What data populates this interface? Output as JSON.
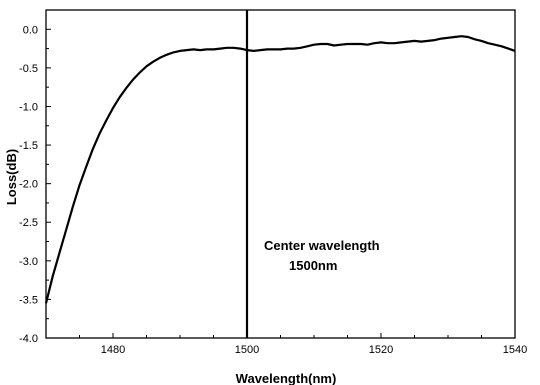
{
  "chart_data": {
    "type": "line",
    "title": "",
    "xlabel": "Wavelength(nm)",
    "ylabel": "Loss(dB)",
    "xlim": [
      1470,
      1540
    ],
    "ylim": [
      -4.0,
      0.25
    ],
    "x_ticks": [
      1480,
      1500,
      1520,
      1540
    ],
    "x_tick_labels": [
      "1480",
      "1500",
      "1520",
      "1540"
    ],
    "y_ticks": [
      0.0,
      -0.5,
      -1.0,
      -1.5,
      -2.0,
      -2.5,
      -3.0,
      -3.5,
      -4.0
    ],
    "y_tick_labels": [
      "0.0",
      "-0.5",
      "-1.0",
      "-1.5",
      "-2.0",
      "-2.5",
      "-3.0",
      "-3.5",
      "-4.0"
    ],
    "grid": false,
    "legend": "none",
    "line_color": "#000000",
    "series": [
      {
        "x": [
          1470,
          1471,
          1472,
          1473,
          1474,
          1475,
          1476,
          1477,
          1478,
          1479,
          1480,
          1481,
          1482,
          1483,
          1484,
          1485,
          1486,
          1487,
          1488,
          1489,
          1490,
          1491,
          1492,
          1493,
          1494,
          1495,
          1496,
          1497,
          1498,
          1499,
          1500,
          1501,
          1502,
          1503,
          1504,
          1505,
          1506,
          1507,
          1508,
          1509,
          1510,
          1511,
          1512,
          1513,
          1514,
          1515,
          1516,
          1517,
          1518,
          1519,
          1520,
          1521,
          1522,
          1523,
          1524,
          1525,
          1526,
          1527,
          1528,
          1529,
          1530,
          1531,
          1532,
          1533,
          1534,
          1535,
          1536,
          1537,
          1538,
          1539,
          1540
        ],
        "values": [
          -3.55,
          -3.2,
          -2.9,
          -2.6,
          -2.3,
          -2.02,
          -1.78,
          -1.55,
          -1.35,
          -1.18,
          -1.02,
          -0.88,
          -0.76,
          -0.65,
          -0.56,
          -0.48,
          -0.42,
          -0.37,
          -0.33,
          -0.3,
          -0.28,
          -0.27,
          -0.26,
          -0.27,
          -0.26,
          -0.26,
          -0.25,
          -0.24,
          -0.24,
          -0.25,
          -0.27,
          -0.28,
          -0.27,
          -0.26,
          -0.26,
          -0.26,
          -0.25,
          -0.25,
          -0.24,
          -0.22,
          -0.2,
          -0.19,
          -0.19,
          -0.21,
          -0.2,
          -0.19,
          -0.19,
          -0.19,
          -0.2,
          -0.18,
          -0.17,
          -0.18,
          -0.18,
          -0.17,
          -0.16,
          -0.15,
          -0.16,
          -0.15,
          -0.14,
          -0.12,
          -0.11,
          -0.1,
          -0.09,
          -0.1,
          -0.13,
          -0.15,
          -0.18,
          -0.2,
          -0.22,
          -0.25,
          -0.28
        ]
      }
    ],
    "marker_line": {
      "x": 1500
    },
    "annotation": {
      "line1": "Center wavelength",
      "line2": "1500nm",
      "x": 1501,
      "y": -2.95
    }
  }
}
